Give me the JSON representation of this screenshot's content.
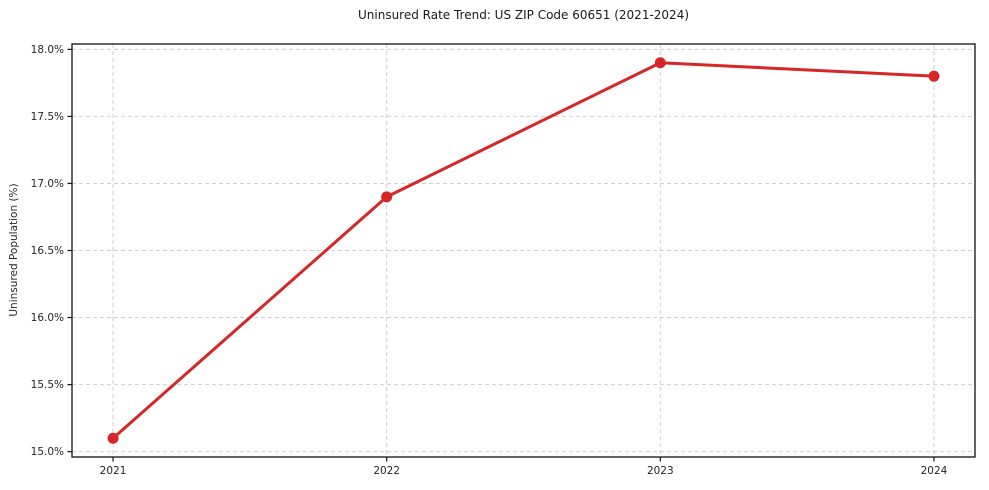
{
  "chart_data": {
    "type": "line",
    "title": "Uninsured Rate Trend: US ZIP Code 60651 (2021-2024)",
    "xlabel": "",
    "ylabel": "Uninsured Population (%)",
    "x": [
      2021,
      2022,
      2023,
      2024
    ],
    "x_tick_labels": [
      "2021",
      "2022",
      "2023",
      "2024"
    ],
    "series": [
      {
        "name": "Uninsured rate",
        "values": [
          15.1,
          16.9,
          17.9,
          17.8
        ]
      }
    ],
    "y_ticks": [
      15.0,
      15.5,
      16.0,
      16.5,
      17.0,
      17.5,
      18.0
    ],
    "y_tick_labels": [
      "15.0%",
      "15.5%",
      "16.0%",
      "16.5%",
      "17.0%",
      "17.5%",
      "18.0%"
    ],
    "ylim": [
      14.96,
      18.04
    ],
    "xlim": [
      2020.85,
      2024.15
    ],
    "grid": true,
    "grid_style": "dashed",
    "legend_position": "none"
  },
  "style": {
    "line_color": "#d62728",
    "marker_color": "#d62728",
    "grid_color": "#c9c9c9",
    "axis_color": "#111111",
    "tick_text_color": "#262626",
    "background_color": "#ffffff"
  }
}
